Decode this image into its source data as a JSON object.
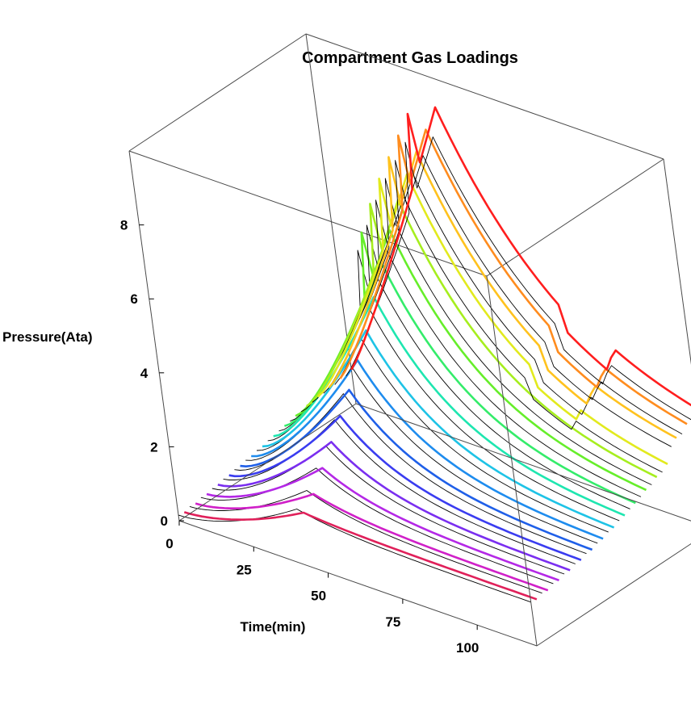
{
  "chart_data": {
    "type": "line",
    "subtype": "3d-waterfall",
    "title": "Compartment Gas Loadings",
    "xlabel": "Time(min)",
    "zlabel": "Pressure(Ata)",
    "x_ticks": [
      "0",
      "25",
      "50",
      "75",
      "100"
    ],
    "z_ticks": [
      "0",
      "2",
      "4",
      "6",
      "8"
    ],
    "xlim": [
      0,
      120
    ],
    "zlim": [
      0,
      10
    ],
    "series_count": 32,
    "rows": [
      {
        "peak": 1.5,
        "color": "#000000"
      },
      {
        "peak": 1.3,
        "color": "#e0205a"
      },
      {
        "peak": 1.8,
        "color": "#000000"
      },
      {
        "peak": 1.6,
        "color": "#d020c8"
      },
      {
        "peak": 2.2,
        "color": "#000000"
      },
      {
        "peak": 2.1,
        "color": "#b428e6"
      },
      {
        "peak": 2.6,
        "color": "#000000"
      },
      {
        "peak": 2.6,
        "color": "#7a2ef0"
      },
      {
        "peak": 3.1,
        "color": "#000000"
      },
      {
        "peak": 3.1,
        "color": "#3a3cf0"
      },
      {
        "peak": 3.6,
        "color": "#000000"
      },
      {
        "peak": 3.6,
        "color": "#1f5fe8"
      },
      {
        "peak": 4.1,
        "color": "#000000"
      },
      {
        "peak": 4.2,
        "color": "#1e8cee"
      },
      {
        "peak": 4.7,
        "color": "#000000"
      },
      {
        "peak": 4.8,
        "color": "#1ec3e6"
      },
      {
        "peak": 5.3,
        "color": "#000000"
      },
      {
        "peak": 5.5,
        "color": "#1ee6b0"
      },
      {
        "peak": 5.9,
        "color": "#000000"
      },
      {
        "peak": 6.2,
        "color": "#34ec6a"
      },
      {
        "peak": 6.5,
        "color": "#000000"
      },
      {
        "peak": 6.9,
        "color": "#66ee2a"
      },
      {
        "peak": 7.0,
        "color": "#000000"
      },
      {
        "peak": 7.5,
        "color": "#a6ee1e"
      },
      {
        "peak": 7.5,
        "color": "#000000"
      },
      {
        "peak": 8.0,
        "color": "#e2ea1e"
      },
      {
        "peak": 7.9,
        "color": "#000000"
      },
      {
        "peak": 8.4,
        "color": "#ffc21e"
      },
      {
        "peak": 8.2,
        "color": "#000000"
      },
      {
        "peak": 8.8,
        "color": "#ff8c1e"
      },
      {
        "peak": 8.5,
        "color": "#000000"
      },
      {
        "peak": 9.2,
        "color": "#ff1e1e"
      }
    ]
  }
}
